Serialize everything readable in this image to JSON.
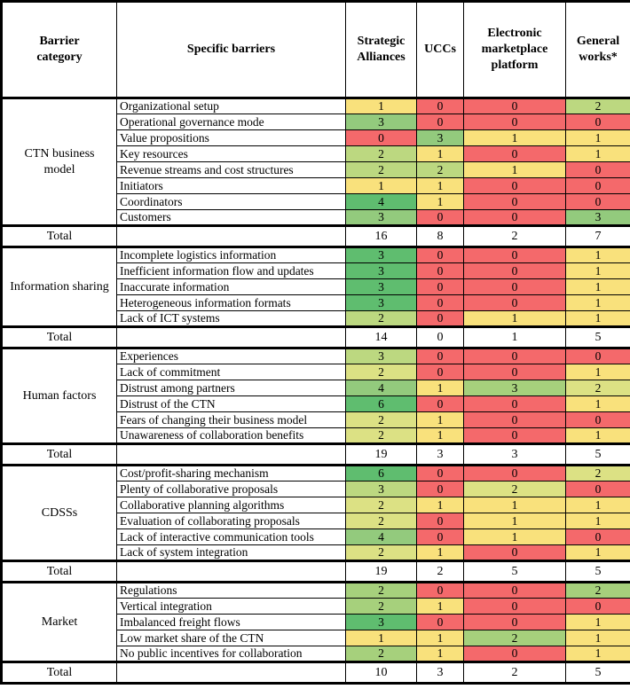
{
  "palette": {
    "red": "#F4696B",
    "yellow": "#F9E17C",
    "yg": "#DCE184",
    "lg": "#BCD880",
    "mlg": "#A6D07C",
    "mg": "#93CA7D",
    "green": "#5FBD6F",
    "white": "#FFFFFF"
  },
  "header": {
    "columns": [
      "Barrier category",
      "Specific barriers",
      "Strategic Alliances",
      "UCCs",
      "Electronic marketplace platform",
      "General works*"
    ]
  },
  "total_label": "Total",
  "sections": [
    {
      "category": "CTN business model",
      "rows": [
        {
          "label": "Organizational setup",
          "values": [
            1,
            0,
            0,
            2
          ],
          "colors": [
            "yellow",
            "red",
            "red",
            "lg"
          ]
        },
        {
          "label": "Operational governance mode",
          "values": [
            3,
            0,
            0,
            0
          ],
          "colors": [
            "mg",
            "red",
            "red",
            "red"
          ]
        },
        {
          "label": "Value propositions",
          "values": [
            0,
            3,
            1,
            1
          ],
          "colors": [
            "red",
            "mg",
            "yellow",
            "yellow"
          ]
        },
        {
          "label": "Key resources",
          "values": [
            2,
            1,
            0,
            1
          ],
          "colors": [
            "lg",
            "yellow",
            "red",
            "yellow"
          ]
        },
        {
          "label": "Revenue streams and cost structures",
          "values": [
            2,
            2,
            1,
            0
          ],
          "colors": [
            "lg",
            "lg",
            "yellow",
            "red"
          ]
        },
        {
          "label": "Initiators",
          "values": [
            1,
            1,
            0,
            0
          ],
          "colors": [
            "yellow",
            "yellow",
            "red",
            "red"
          ]
        },
        {
          "label": "Coordinators",
          "values": [
            4,
            1,
            0,
            0
          ],
          "colors": [
            "green",
            "yellow",
            "red",
            "red"
          ]
        },
        {
          "label": "Customers",
          "values": [
            3,
            0,
            0,
            3
          ],
          "colors": [
            "mg",
            "red",
            "red",
            "mg"
          ]
        }
      ],
      "totals": [
        16,
        8,
        2,
        7
      ]
    },
    {
      "category": "Information sharing",
      "rows": [
        {
          "label": "Incomplete logistics information",
          "values": [
            3,
            0,
            0,
            1
          ],
          "colors": [
            "green",
            "red",
            "red",
            "yellow"
          ]
        },
        {
          "label": "Inefficient information flow and updates",
          "values": [
            3,
            0,
            0,
            1
          ],
          "colors": [
            "green",
            "red",
            "red",
            "yellow"
          ]
        },
        {
          "label": "Inaccurate information",
          "values": [
            3,
            0,
            0,
            1
          ],
          "colors": [
            "green",
            "red",
            "red",
            "yellow"
          ]
        },
        {
          "label": "Heterogeneous information formats",
          "values": [
            3,
            0,
            0,
            1
          ],
          "colors": [
            "green",
            "red",
            "red",
            "yellow"
          ]
        },
        {
          "label": "Lack of ICT systems",
          "values": [
            2,
            0,
            1,
            1
          ],
          "colors": [
            "lg",
            "red",
            "yellow",
            "yellow"
          ]
        }
      ],
      "totals": [
        14,
        0,
        1,
        5
      ]
    },
    {
      "category": "Human factors",
      "rows": [
        {
          "label": "Experiences",
          "values": [
            3,
            0,
            0,
            0
          ],
          "colors": [
            "lg",
            "red",
            "red",
            "red"
          ]
        },
        {
          "label": "Lack of commitment",
          "values": [
            2,
            0,
            0,
            1
          ],
          "colors": [
            "yg",
            "red",
            "red",
            "yellow"
          ]
        },
        {
          "label": "Distrust among partners",
          "values": [
            4,
            1,
            3,
            2
          ],
          "colors": [
            "mg",
            "yellow",
            "mlg",
            "yg"
          ]
        },
        {
          "label": "Distrust of the CTN",
          "values": [
            6,
            0,
            0,
            1
          ],
          "colors": [
            "green",
            "red",
            "red",
            "yellow"
          ]
        },
        {
          "label": "Fears of changing their business model",
          "values": [
            2,
            1,
            0,
            0
          ],
          "colors": [
            "yg",
            "yellow",
            "red",
            "red"
          ]
        },
        {
          "label": "Unawareness of collaboration benefits",
          "values": [
            2,
            1,
            0,
            1
          ],
          "colors": [
            "yg",
            "yellow",
            "red",
            "yellow"
          ]
        }
      ],
      "totals": [
        19,
        3,
        3,
        5
      ]
    },
    {
      "category": "CDSSs",
      "rows": [
        {
          "label": "Cost/profit-sharing mechanism",
          "values": [
            6,
            0,
            0,
            2
          ],
          "colors": [
            "green",
            "red",
            "red",
            "yg"
          ]
        },
        {
          "label": "Plenty of collaborative proposals",
          "values": [
            3,
            0,
            2,
            0
          ],
          "colors": [
            "lg",
            "red",
            "yg",
            "red"
          ]
        },
        {
          "label": "Collaborative planning algorithms",
          "values": [
            2,
            1,
            1,
            1
          ],
          "colors": [
            "yg",
            "yellow",
            "yellow",
            "yellow"
          ]
        },
        {
          "label": "Evaluation of collaborating proposals",
          "values": [
            2,
            0,
            1,
            1
          ],
          "colors": [
            "yg",
            "red",
            "yellow",
            "yellow"
          ]
        },
        {
          "label": "Lack of interactive communication tools",
          "values": [
            4,
            0,
            1,
            0
          ],
          "colors": [
            "mg",
            "red",
            "yellow",
            "red"
          ]
        },
        {
          "label": "Lack of system integration",
          "values": [
            2,
            1,
            0,
            1
          ],
          "colors": [
            "yg",
            "yellow",
            "red",
            "yellow"
          ]
        }
      ],
      "totals": [
        19,
        2,
        5,
        5
      ]
    },
    {
      "category": "Market",
      "rows": [
        {
          "label": "Regulations",
          "values": [
            2,
            0,
            0,
            2
          ],
          "colors": [
            "mlg",
            "red",
            "red",
            "mlg"
          ]
        },
        {
          "label": "Vertical integration",
          "values": [
            2,
            1,
            0,
            0
          ],
          "colors": [
            "mlg",
            "yellow",
            "red",
            "red"
          ]
        },
        {
          "label": "Imbalanced freight flows",
          "values": [
            3,
            0,
            0,
            1
          ],
          "colors": [
            "green",
            "red",
            "red",
            "yellow"
          ]
        },
        {
          "label": "Low market share of the CTN",
          "values": [
            1,
            1,
            2,
            1
          ],
          "colors": [
            "yellow",
            "yellow",
            "mlg",
            "yellow"
          ]
        },
        {
          "label": "No public incentives for collaboration",
          "values": [
            2,
            1,
            0,
            1
          ],
          "colors": [
            "mlg",
            "yellow",
            "red",
            "yellow"
          ]
        }
      ],
      "totals": [
        10,
        3,
        2,
        5
      ]
    }
  ]
}
